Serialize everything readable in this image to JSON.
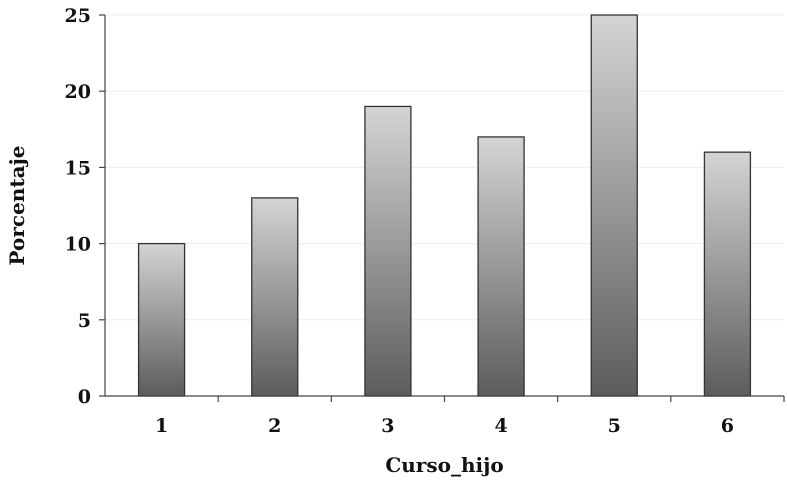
{
  "chart_data": {
    "type": "bar",
    "categories": [
      "1",
      "2",
      "3",
      "4",
      "5",
      "6"
    ],
    "values": [
      10,
      13,
      19,
      17,
      25,
      16
    ],
    "title": "",
    "xlabel": "Curso_hijo",
    "ylabel": "Porcentaje",
    "ylim": [
      0,
      25
    ],
    "yticks": [
      0,
      5,
      10,
      15,
      20,
      25
    ],
    "grid": true,
    "legend": "none",
    "colors": {
      "bar_top": "#d4d4d4",
      "bar_bottom": "#5c5c5c",
      "bar_stroke": "#333333",
      "grid": "#f1efd9",
      "axis": "#444444"
    }
  }
}
